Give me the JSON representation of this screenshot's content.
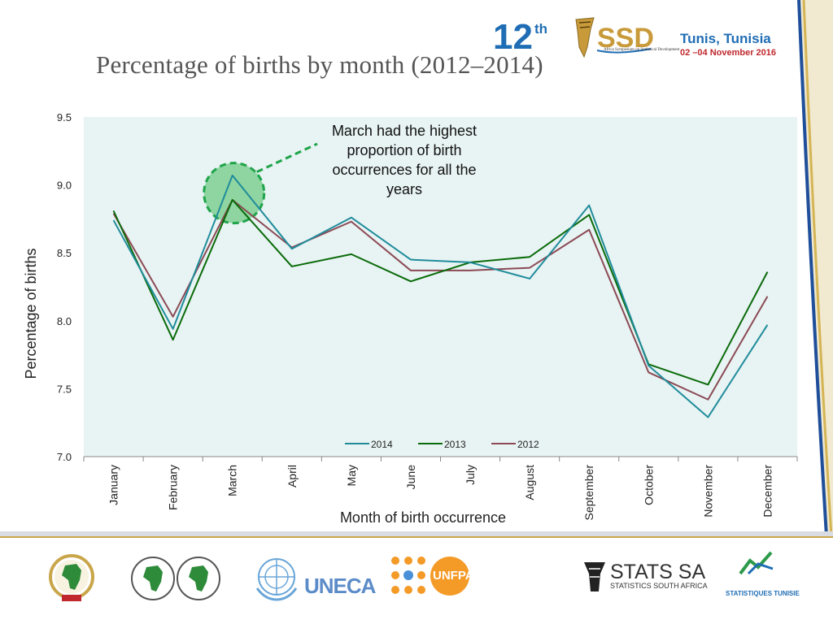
{
  "header": {
    "title": "Percentage of births by month (2012–2014)",
    "edition_number": "12",
    "edition_suffix": "th",
    "symposium_caption": "Africa Symposium on Statistical Development",
    "venue_city": "Tunis, Tunisia",
    "venue_dates": "02 –04 November 2016"
  },
  "chart_data": {
    "type": "line",
    "title": "",
    "xlabel": "Month of birth occurrence",
    "ylabel": "Percentage of births",
    "ylim": [
      7.0,
      9.5
    ],
    "yticks": [
      "7.0",
      "7.5",
      "8.0",
      "8.5",
      "9.0",
      "9.5"
    ],
    "ytick_values": [
      7.0,
      7.5,
      8.0,
      8.5,
      9.0,
      9.5
    ],
    "categories": [
      "January",
      "February",
      "March",
      "April",
      "May",
      "June",
      "July",
      "August",
      "September",
      "October",
      "November",
      "December"
    ],
    "series": [
      {
        "name": "2014",
        "color": "#1f8c9b",
        "values": [
          8.74,
          7.94,
          9.07,
          8.53,
          8.76,
          8.45,
          8.43,
          8.31,
          8.85,
          7.67,
          7.29,
          7.97
        ]
      },
      {
        "name": "2013",
        "color": "#0a6b0a",
        "values": [
          8.81,
          7.86,
          8.89,
          8.4,
          8.49,
          8.29,
          8.43,
          8.47,
          8.78,
          7.68,
          7.53,
          8.36
        ]
      },
      {
        "name": "2012",
        "color": "#8b4a55",
        "values": [
          8.79,
          8.03,
          8.89,
          8.54,
          8.73,
          8.37,
          8.37,
          8.39,
          8.67,
          7.62,
          7.42,
          8.18
        ]
      }
    ],
    "annotation": {
      "text_lines": [
        "March had the highest",
        "proportion of birth",
        "occurrences for all the",
        "years"
      ],
      "target_category": "March"
    },
    "legend_position": "bottom-center",
    "plot_background": "#e8f3f3",
    "grid": false
  },
  "footer_logos": {
    "uneca": "UNECA",
    "unfpa": "UNFPA",
    "stats_sa_main": "STATS SA",
    "stats_sa_sub": "STATISTICS SOUTH AFRICA",
    "tunisie_sub": "STATISTIQUES TUNISIE"
  }
}
